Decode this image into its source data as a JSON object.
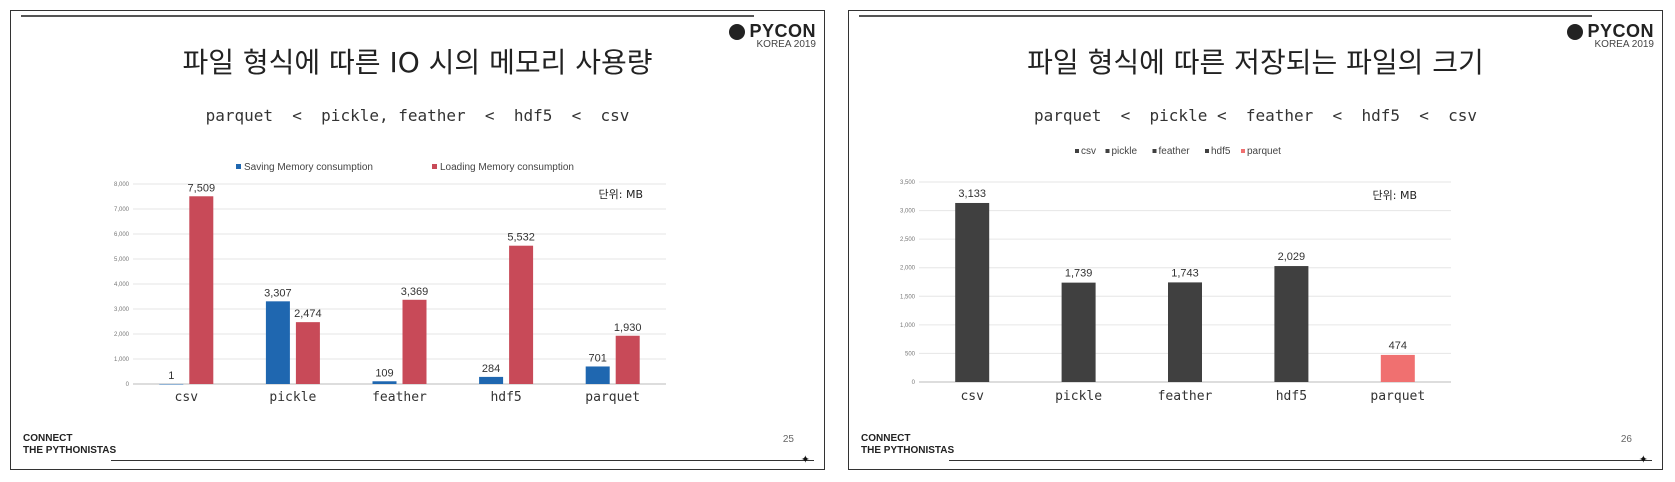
{
  "slides": [
    {
      "logo": {
        "name": "PYCON",
        "sub": "KOREA 2019"
      },
      "title": "파일 형식에 따른 IO 시의 메모리 사용량",
      "ranking": "parquet  <  pickle, feather  <  hdf5  <  csv",
      "footer": {
        "line1": "CONNECT",
        "line2": "THE PYTHONISTAS"
      },
      "page_number": "25"
    },
    {
      "logo": {
        "name": "PYCON",
        "sub": "KOREA 2019"
      },
      "title": "파일 형식에 따른 저장되는 파일의 크기",
      "ranking": "parquet  <  pickle <  feather  <  hdf5  <  csv",
      "footer": {
        "line1": "CONNECT",
        "line2": "THE PYTHONISTAS"
      },
      "page_number": "26"
    }
  ],
  "chart_data": [
    {
      "type": "bar",
      "categories": [
        "csv",
        "pickle",
        "feather",
        "hdf5",
        "parquet"
      ],
      "series": [
        {
          "name": "Saving Memory consumption",
          "values": [
            1,
            3307,
            109,
            284,
            701
          ],
          "color": "#1f67b0"
        },
        {
          "name": "Loading Memory consumption",
          "values": [
            7509,
            2474,
            3369,
            5532,
            1930
          ],
          "color": "#c84a58"
        }
      ],
      "unit_label": "단위: MB",
      "ylim": [
        0,
        8000
      ],
      "yticks": [
        "0",
        "1,000",
        "2,000",
        "3,000",
        "4,000",
        "5,000",
        "6,000",
        "7,000",
        "8,000"
      ],
      "data_labels": [
        [
          "1",
          "3,307",
          "109",
          "284",
          "701"
        ],
        [
          "7,509",
          "2,474",
          "3,369",
          "5,532",
          "1,930"
        ]
      ],
      "legend": "top",
      "grid": true
    },
    {
      "type": "bar",
      "categories": [
        "csv",
        "pickle",
        "feather",
        "hdf5",
        "parquet"
      ],
      "values": [
        3133,
        1739,
        1743,
        2029,
        474
      ],
      "colors": [
        "#404040",
        "#404040",
        "#404040",
        "#404040",
        "#f07070"
      ],
      "legend_entries": [
        {
          "name": "csv",
          "color": "#404040"
        },
        {
          "name": "pickle",
          "color": "#404040"
        },
        {
          "name": "feather",
          "color": "#404040"
        },
        {
          "name": "hdf5",
          "color": "#404040"
        },
        {
          "name": "parquet",
          "color": "#f07070"
        }
      ],
      "unit_label": "단위: MB",
      "ylim": [
        0,
        3500
      ],
      "yticks": [
        "0",
        "500",
        "1,000",
        "1,500",
        "2,000",
        "2,500",
        "3,000",
        "3,500"
      ],
      "data_labels": [
        "3,133",
        "1,739",
        "1,743",
        "2,029",
        "474"
      ],
      "legend": "top",
      "grid": true
    }
  ]
}
